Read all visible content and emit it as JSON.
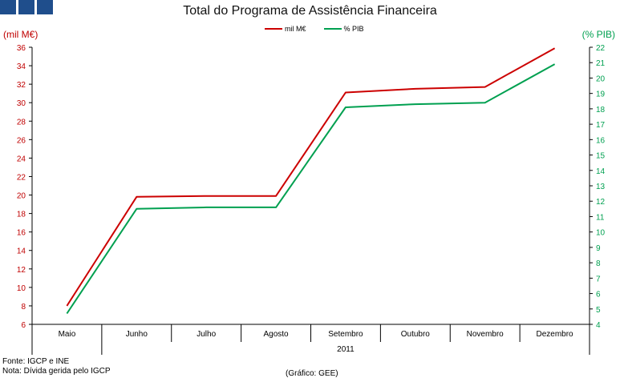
{
  "title": "Total do Programa de Assistência Financeira",
  "units": {
    "left": "(mil M€)",
    "right": "(% PIB)"
  },
  "footer": {
    "source": "Fonte: IGCP e INE",
    "note": "Nota: Dívida gerida pelo IGCP",
    "credit": "(Gráfico: GEE)"
  },
  "colors": {
    "series1": "#cc0000",
    "series2": "#00a050",
    "left_axis": "#c00000",
    "right_axis": "#00a050"
  },
  "chart_data": {
    "type": "line",
    "title": "Total do Programa de Assistência Financeira",
    "categories": [
      "Maio",
      "Junho",
      "Julho",
      "Agosto",
      "Setembro",
      "Outubro",
      "Novembro",
      "Dezembro"
    ],
    "year_label": "2011",
    "series": [
      {
        "name": "mil M€",
        "axis": "left",
        "values": [
          8.0,
          19.8,
          19.9,
          19.9,
          31.1,
          31.5,
          31.7,
          35.9
        ]
      },
      {
        "name": "% PIB",
        "axis": "right",
        "values": [
          4.7,
          11.5,
          11.6,
          11.6,
          18.1,
          18.3,
          18.4,
          20.9
        ]
      }
    ],
    "y_left": {
      "label": "(mil M€)",
      "lim": [
        6,
        36
      ],
      "ticks": [
        6,
        8,
        10,
        12,
        14,
        16,
        18,
        20,
        22,
        24,
        26,
        28,
        30,
        32,
        34,
        36
      ]
    },
    "y_right": {
      "label": "(% PIB)",
      "lim": [
        4,
        22
      ],
      "ticks": [
        4,
        5,
        6,
        7,
        8,
        9,
        10,
        11,
        12,
        13,
        14,
        15,
        16,
        17,
        18,
        19,
        20,
        21,
        22
      ]
    },
    "grid": false,
    "legend_position": "top"
  }
}
